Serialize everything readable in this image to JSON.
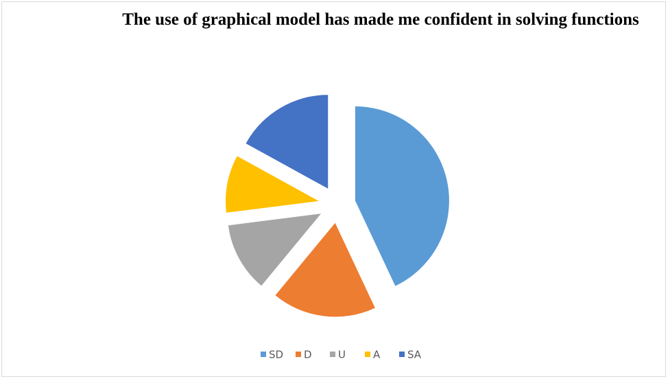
{
  "chart_data": {
    "type": "pie",
    "title": "The use of graphical model has made me confident in solving functions",
    "categories": [
      "SD",
      "D",
      "U",
      "A",
      "SA"
    ],
    "values": [
      43,
      18,
      12,
      10,
      17
    ],
    "colors": [
      "#5b9bd5",
      "#ed7d31",
      "#a5a5a5",
      "#ffc000",
      "#4472c4"
    ],
    "exploded": true,
    "legend": "bottom"
  }
}
